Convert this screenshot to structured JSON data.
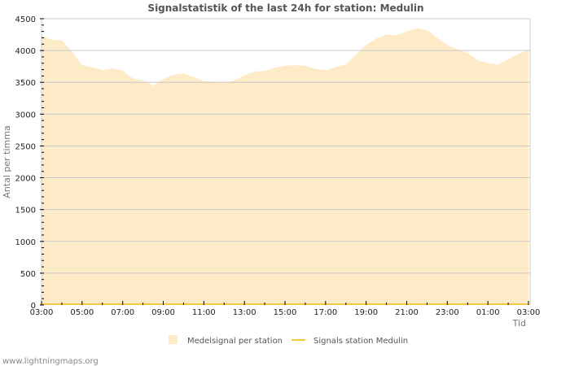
{
  "chart_data": {
    "type": "area",
    "title": "Signalstatistik of the last 24h for station: Medulin",
    "xlabel": "Tid",
    "ylabel": "Antal per timma",
    "ylim": [
      0,
      4500
    ],
    "yticks": [
      0,
      500,
      1000,
      1500,
      2000,
      2500,
      3000,
      3500,
      4000,
      4500
    ],
    "xtick_labels": [
      "03:00",
      "05:00",
      "07:00",
      "09:00",
      "11:00",
      "13:00",
      "15:00",
      "17:00",
      "19:00",
      "21:00",
      "23:00",
      "01:00",
      "03:00"
    ],
    "grid": true,
    "legend_position": "bottom",
    "x": [
      "03:00",
      "03:30",
      "04:00",
      "04:30",
      "05:00",
      "05:30",
      "06:00",
      "06:30",
      "07:00",
      "07:30",
      "08:00",
      "08:30",
      "09:00",
      "09:30",
      "10:00",
      "10:30",
      "11:00",
      "11:30",
      "12:00",
      "12:30",
      "13:00",
      "13:30",
      "14:00",
      "14:30",
      "15:00",
      "15:30",
      "16:00",
      "16:30",
      "17:00",
      "17:30",
      "18:00",
      "18:30",
      "19:00",
      "19:30",
      "20:00",
      "20:30",
      "21:00",
      "21:30",
      "22:00",
      "22:30",
      "23:00",
      "23:30",
      "00:00",
      "00:30",
      "01:00",
      "01:30",
      "02:00",
      "02:30",
      "03:00"
    ],
    "series": [
      {
        "name": "Medelsignal per station",
        "type": "area",
        "color": "#fdebc8",
        "values": [
          4220,
          4170,
          4160,
          3980,
          3770,
          3740,
          3690,
          3720,
          3680,
          3560,
          3530,
          3450,
          3550,
          3620,
          3640,
          3580,
          3520,
          3510,
          3500,
          3530,
          3610,
          3670,
          3680,
          3730,
          3760,
          3770,
          3760,
          3710,
          3690,
          3740,
          3780,
          3940,
          4090,
          4190,
          4250,
          4240,
          4300,
          4350,
          4320,
          4200,
          4090,
          4020,
          3960,
          3850,
          3800,
          3780,
          3860,
          3950,
          4000
        ]
      },
      {
        "name": "Signals station Medulin",
        "type": "line",
        "color": "#f5c842",
        "values": [
          0,
          0,
          0,
          0,
          0,
          0,
          0,
          0,
          0,
          0,
          0,
          0,
          0,
          0,
          0,
          0,
          0,
          0,
          0,
          0,
          0,
          0,
          0,
          0,
          0,
          0,
          0,
          0,
          0,
          0,
          0,
          0,
          0,
          0,
          0,
          0,
          0,
          0,
          0,
          0,
          0,
          0,
          0,
          0,
          0,
          0,
          0,
          0,
          0
        ]
      }
    ]
  },
  "legend": {
    "items": [
      {
        "label": "Medelsignal per station",
        "swatch": "box",
        "color": "#fdebc8"
      },
      {
        "label": "Signals station Medulin",
        "swatch": "line",
        "color": "#f5c842"
      }
    ]
  },
  "footer": {
    "text": "www.lightningmaps.org"
  },
  "colors": {
    "grid": "#c8c8c8",
    "axis": "#cccccc",
    "area": "#fdebc8",
    "line": "#f5c842"
  }
}
